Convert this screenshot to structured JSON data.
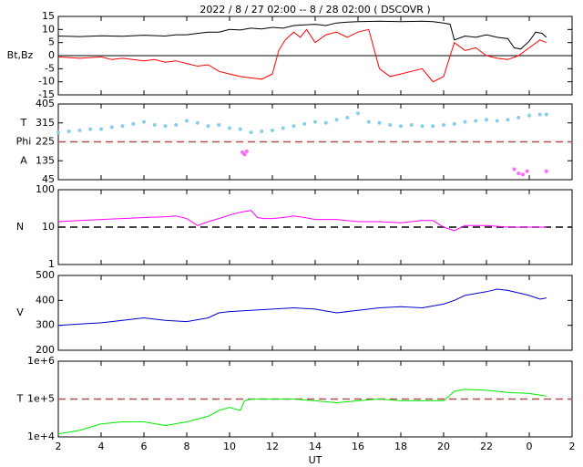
{
  "chart_data": [
    {
      "type": "line",
      "title": "2022 /  8 / 27   02:00 -- 8 / 28   02:00 ( DSCOVR )",
      "ylabel": [
        "Bt,Bz"
      ],
      "xlim": [
        2,
        26
      ],
      "xticks": [
        2,
        4,
        6,
        8,
        10,
        12,
        14,
        16,
        18,
        20,
        22,
        {
          "value": 24,
          "label": "0"
        },
        {
          "value": 26,
          "label": "2"
        }
      ],
      "ylim": [
        -15,
        15
      ],
      "yticks": [
        15,
        10,
        5,
        0,
        -5,
        -10,
        -15
      ],
      "hline": 0,
      "hline_color": "#000000",
      "hline_dash": false,
      "series": [
        {
          "color": "#000000",
          "x": [
            2,
            3,
            4,
            5,
            6,
            7,
            7.5,
            8,
            8.5,
            9,
            9.5,
            10,
            10.5,
            11,
            11.5,
            12,
            12.5,
            13,
            13.5,
            14,
            14.5,
            15,
            15.5,
            16,
            17,
            18,
            19,
            19.5,
            20,
            20.3,
            20.5,
            21,
            21.5,
            22,
            22.5,
            23,
            23.3,
            23.6,
            24,
            24.3,
            24.6,
            24.8
          ],
          "values": [
            7.5,
            7.3,
            7.6,
            7.4,
            7.8,
            7.5,
            8,
            8,
            8.5,
            9,
            9,
            10,
            9.8,
            10.5,
            10.2,
            10.8,
            10.5,
            11.5,
            11.8,
            12,
            11.5,
            12.5,
            12.8,
            13,
            13.2,
            13,
            13.2,
            13,
            12.5,
            12,
            6,
            7.5,
            7,
            8,
            7,
            6.5,
            3,
            2.5,
            5.5,
            9,
            8.5,
            7
          ]
        },
        {
          "color": "#ff0000",
          "x": [
            2,
            3,
            4,
            4.5,
            5,
            6,
            6.5,
            7,
            7.5,
            8,
            8.5,
            9,
            9.5,
            10,
            10.5,
            11,
            11.5,
            12,
            12.3,
            12.6,
            13,
            13.3,
            13.6,
            14,
            14.5,
            15,
            15.5,
            16,
            16.5,
            17,
            17.5,
            18,
            18.5,
            19,
            19.5,
            20,
            20.5,
            21,
            21.5,
            22,
            22.5,
            23,
            23.5,
            24,
            24.5,
            24.8
          ],
          "values": [
            -0.5,
            -1,
            -0.5,
            -1.5,
            -1,
            -2,
            -1.5,
            -2.5,
            -2,
            -3,
            -4,
            -3.5,
            -6,
            -7,
            -8,
            -8.5,
            -9,
            -7,
            2,
            6,
            9,
            7,
            10,
            5,
            8,
            9,
            7,
            9,
            10,
            -5,
            -8,
            -7,
            -6,
            -5,
            -10,
            -8,
            5,
            2,
            3,
            0,
            -1,
            -1.5,
            0,
            3,
            6,
            5
          ]
        }
      ]
    },
    {
      "type": "scatter",
      "ylabel": [
        "T",
        "Phi",
        "A"
      ],
      "xlim": [
        2,
        26
      ],
      "xticks": [
        2,
        4,
        6,
        8,
        10,
        12,
        14,
        16,
        18,
        20,
        22,
        {
          "value": 24,
          "label": "0"
        },
        {
          "value": 26,
          "label": "2"
        }
      ],
      "ylim": [
        45,
        405
      ],
      "yticks": [
        405,
        315,
        225,
        135,
        45
      ],
      "hline": 225,
      "hline_color": "#b05050",
      "hline_dash": true,
      "series": [
        {
          "color": "#87ceeb",
          "x": [
            2,
            2.5,
            3,
            3.5,
            4,
            4.5,
            5,
            5.5,
            6,
            6.5,
            7,
            7.5,
            8,
            8.5,
            9,
            9.5,
            10,
            10.5,
            11,
            11.5,
            12,
            12.5,
            13,
            13.5,
            14,
            14.5,
            15,
            15.5,
            16,
            16.5,
            17,
            17.5,
            18,
            18.5,
            19,
            19.5,
            20,
            20.5,
            21,
            21.5,
            22,
            22.5,
            23,
            23.5,
            24,
            24.5,
            24.8
          ],
          "values": [
            270,
            275,
            280,
            285,
            285,
            295,
            300,
            310,
            320,
            305,
            300,
            305,
            325,
            315,
            300,
            305,
            290,
            285,
            270,
            275,
            280,
            290,
            300,
            310,
            320,
            315,
            330,
            340,
            360,
            320,
            315,
            305,
            300,
            305,
            300,
            300,
            305,
            310,
            320,
            325,
            330,
            325,
            330,
            340,
            350,
            355,
            355
          ]
        },
        {
          "color": "#ff66ff",
          "x": [
            10.6,
            10.7,
            10.8,
            23.3,
            23.5,
            23.7,
            23.9,
            24.8
          ],
          "values": [
            175,
            165,
            180,
            95,
            75,
            70,
            85,
            85
          ]
        }
      ]
    },
    {
      "type": "line",
      "ylabel": [
        "N"
      ],
      "ylog": true,
      "xlim": [
        2,
        26
      ],
      "xticks": [
        2,
        4,
        6,
        8,
        10,
        12,
        14,
        16,
        18,
        20,
        22,
        {
          "value": 24,
          "label": "0"
        },
        {
          "value": 26,
          "label": "2"
        }
      ],
      "ylim": [
        1,
        100
      ],
      "yticks": [
        100,
        10,
        1
      ],
      "hline": 10,
      "hline_color": "#000000",
      "hline_dash": true,
      "series": [
        {
          "color": "#ff00ff",
          "x": [
            2,
            3,
            4,
            5,
            6,
            7,
            7.5,
            8,
            8.5,
            9,
            9.5,
            10,
            10.5,
            11,
            11.3,
            11.6,
            12,
            12.5,
            13,
            13.5,
            14,
            15,
            16,
            17,
            18,
            19,
            19.5,
            20,
            20.5,
            21,
            22,
            23,
            24,
            24.8
          ],
          "values": [
            14,
            15,
            16,
            17,
            18,
            19,
            20,
            17,
            11,
            14,
            17,
            21,
            25,
            28,
            18,
            17,
            17,
            18,
            20,
            18,
            16,
            16,
            14,
            14,
            13,
            15,
            15,
            10,
            8,
            11,
            11,
            10,
            10,
            10
          ]
        }
      ]
    },
    {
      "type": "line",
      "ylabel": [
        "V"
      ],
      "xlim": [
        2,
        26
      ],
      "xticks": [
        2,
        4,
        6,
        8,
        10,
        12,
        14,
        16,
        18,
        20,
        22,
        {
          "value": 24,
          "label": "0"
        },
        {
          "value": 26,
          "label": "2"
        }
      ],
      "ylim": [
        200,
        500
      ],
      "yticks": [
        500,
        400,
        300,
        200
      ],
      "series": [
        {
          "color": "#0000cc",
          "x": [
            2,
            3,
            4,
            5,
            6,
            7,
            8,
            9,
            9.5,
            10,
            11,
            12,
            13,
            14,
            15,
            16,
            17,
            18,
            19,
            20,
            20.5,
            21,
            22,
            22.5,
            23,
            24,
            24.5,
            24.8
          ],
          "values": [
            300,
            305,
            310,
            320,
            330,
            320,
            315,
            330,
            350,
            355,
            360,
            365,
            370,
            365,
            350,
            360,
            370,
            375,
            370,
            385,
            400,
            420,
            435,
            445,
            440,
            420,
            405,
            410
          ]
        }
      ]
    },
    {
      "type": "line",
      "ylabel": [
        "T"
      ],
      "ylog": true,
      "xlabel": "UT",
      "xtick_labels": true,
      "xlim": [
        2,
        26
      ],
      "xticks": [
        2,
        4,
        6,
        8,
        10,
        12,
        14,
        16,
        18,
        20,
        22,
        {
          "value": 24,
          "label": "0"
        },
        {
          "value": 26,
          "label": "2"
        }
      ],
      "ylim": [
        10000,
        1000000
      ],
      "yticks": [
        {
          "value": 1000000,
          "label": "1e+6"
        },
        {
          "value": 100000,
          "label": "1e+5"
        },
        {
          "value": 10000,
          "label": "1e+4"
        }
      ],
      "hline": 100000,
      "hline_color": "#b05050",
      "hline_dash": true,
      "series": [
        {
          "color": "#00ee00",
          "x": [
            2,
            3,
            4,
            5,
            6,
            7,
            8,
            9,
            9.5,
            10,
            10.5,
            10.7,
            11,
            12,
            13,
            14,
            15,
            16,
            17,
            18,
            19,
            20,
            20.5,
            21,
            22,
            23,
            24,
            24.8
          ],
          "values": [
            12000,
            15000,
            22000,
            25000,
            25000,
            20000,
            25000,
            35000,
            50000,
            60000,
            50000,
            90000,
            100000,
            100000,
            100000,
            90000,
            80000,
            90000,
            100000,
            90000,
            90000,
            90000,
            160000,
            180000,
            170000,
            150000,
            140000,
            120000
          ]
        }
      ]
    }
  ]
}
